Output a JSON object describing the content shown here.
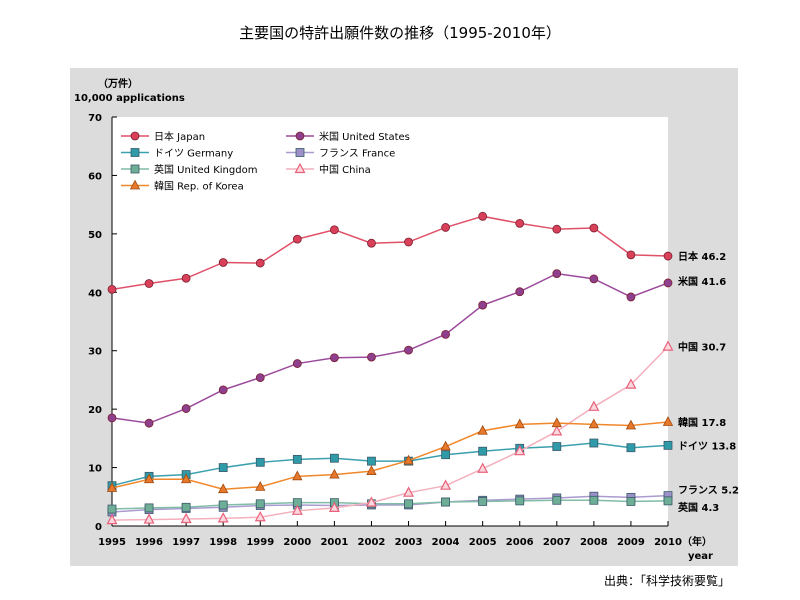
{
  "chart_data": {
    "type": "line",
    "title": "主要国の特許出願件数の推移（1995-2010年）",
    "ylabel_jp": "（万件）",
    "ylabel": "10,000 applications",
    "xlabel_jp": "（年）",
    "xlabel": "year",
    "ylim": [
      0,
      70
    ],
    "yticks": [
      0,
      10,
      20,
      30,
      40,
      50,
      60,
      70
    ],
    "legend_position": "top-left",
    "grid": false,
    "x": [
      1995,
      1996,
      1997,
      1998,
      1999,
      2000,
      2001,
      2002,
      2003,
      2004,
      2005,
      2006,
      2007,
      2008,
      2009,
      2010
    ],
    "series": [
      {
        "name": "日本 Japan",
        "end_label": "日本 46.2",
        "color": "#d9405a",
        "line": "#e05068",
        "marker": "circle",
        "values": [
          40.5,
          41.5,
          42.4,
          45.1,
          45.0,
          49.1,
          50.7,
          48.4,
          48.6,
          51.1,
          53.0,
          51.8,
          50.8,
          51.0,
          46.4,
          46.2
        ]
      },
      {
        "name": "米国 United States",
        "end_label": "米国 41.6",
        "color": "#8e3f8e",
        "line": "#9c4a9c",
        "marker": "circle",
        "values": [
          18.5,
          17.6,
          20.1,
          23.3,
          25.4,
          27.8,
          28.8,
          28.9,
          30.1,
          32.8,
          37.8,
          40.1,
          43.2,
          42.3,
          39.2,
          41.6
        ]
      },
      {
        "name": "ドイツ Germany",
        "end_label": "ドイツ 13.8",
        "color": "#2f9aa8",
        "line": "#3aa0ad",
        "marker": "square",
        "values": [
          6.9,
          8.5,
          8.8,
          10.0,
          10.9,
          11.4,
          11.6,
          11.1,
          11.1,
          12.2,
          12.8,
          13.3,
          13.6,
          14.2,
          13.4,
          13.8
        ]
      },
      {
        "name": "フランス France",
        "end_label": "フランス 5.2",
        "color": "#9d8fc8",
        "line": "#a99bd0",
        "marker": "square",
        "values": [
          2.4,
          2.8,
          3.0,
          3.2,
          3.5,
          3.6,
          3.5,
          3.6,
          3.6,
          4.1,
          4.4,
          4.6,
          4.8,
          5.1,
          4.9,
          5.2
        ]
      },
      {
        "name": "英国 United Kingdom",
        "end_label": "英国 4.3",
        "color": "#6fae96",
        "line": "#80bca6",
        "marker": "square",
        "values": [
          2.9,
          3.1,
          3.2,
          3.6,
          3.8,
          4.0,
          4.0,
          3.8,
          3.8,
          4.1,
          4.2,
          4.3,
          4.4,
          4.4,
          4.2,
          4.3
        ]
      },
      {
        "name": "中国 China",
        "end_label": "中国 30.7",
        "color": "#e8607a",
        "line": "#f3b0bc",
        "marker": "triangle-open",
        "values": [
          1.0,
          1.1,
          1.2,
          1.3,
          1.5,
          2.6,
          3.1,
          4.0,
          5.7,
          6.9,
          9.8,
          12.8,
          16.2,
          20.4,
          24.2,
          30.7
        ]
      },
      {
        "name": "韓国 Rep. of Korea",
        "end_label": "韓国 17.8",
        "color": "#e8782a",
        "line": "#f0872a",
        "marker": "triangle",
        "values": [
          6.5,
          8.0,
          8.0,
          6.3,
          6.7,
          8.5,
          8.8,
          9.4,
          11.2,
          13.6,
          16.3,
          17.4,
          17.6,
          17.4,
          17.2,
          17.8
        ]
      }
    ]
  },
  "source": "出典：「科学技術要覧」"
}
